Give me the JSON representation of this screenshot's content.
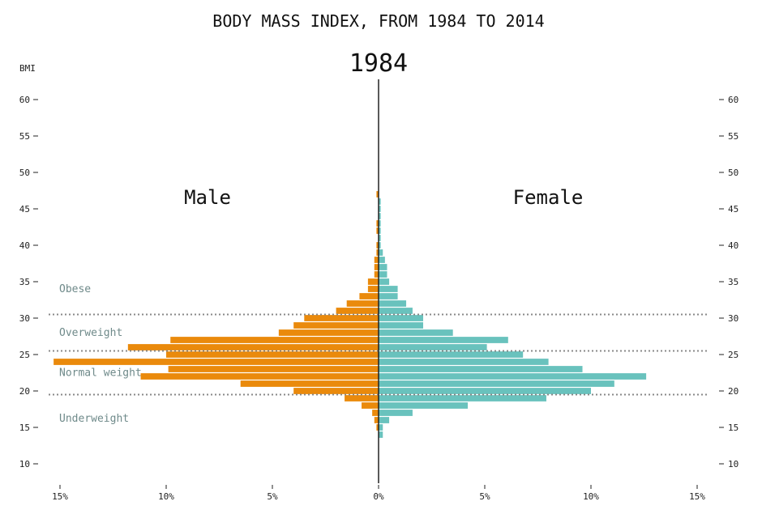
{
  "chart_data": {
    "type": "bar",
    "orientation": "horizontal",
    "title": "BODY MASS INDEX, FROM 1984 TO 2014",
    "year": "1984",
    "ylabel": "BMI",
    "ylim": [
      8,
      63
    ],
    "yticks": [
      10,
      15,
      20,
      25,
      30,
      35,
      40,
      45,
      50,
      55,
      60
    ],
    "xlim": [
      -15,
      15
    ],
    "xticks": [
      -15,
      -10,
      -5,
      0,
      5,
      10,
      15
    ],
    "xtick_labels": [
      "15%",
      "10%",
      "5%",
      "0%",
      "5%",
      "10%",
      "15%"
    ],
    "categories": [
      14,
      15,
      16,
      17,
      18,
      19,
      20,
      21,
      22,
      23,
      24,
      25,
      26,
      27,
      28,
      29,
      30,
      31,
      32,
      33,
      34,
      35,
      36,
      37,
      38,
      39,
      40,
      41,
      42,
      43,
      44,
      45,
      46,
      47
    ],
    "series": [
      {
        "name": "Male",
        "color": "#ea8a0c",
        "values": [
          0,
          0.1,
          0.2,
          0.3,
          0.8,
          1.6,
          4.0,
          6.5,
          11.2,
          9.9,
          15.3,
          10.0,
          11.8,
          9.8,
          4.7,
          4.0,
          3.5,
          2.0,
          1.5,
          0.9,
          0.5,
          0.5,
          0.2,
          0.2,
          0.2,
          0.1,
          0.1,
          0,
          0.1,
          0.1,
          0,
          0,
          0,
          0.1
        ]
      },
      {
        "name": "Female",
        "color": "#69c2bd",
        "values": [
          0.2,
          0.2,
          0.5,
          1.6,
          4.2,
          7.9,
          10.0,
          11.1,
          12.6,
          9.6,
          8.0,
          6.8,
          5.1,
          6.1,
          3.5,
          2.1,
          2.1,
          1.6,
          1.3,
          0.9,
          0.9,
          0.5,
          0.4,
          0.4,
          0.3,
          0.2,
          0.1,
          0.1,
          0.1,
          0.1,
          0.1,
          0.1,
          0.1,
          0
        ]
      }
    ],
    "thresholds": [
      19.5,
      25.5,
      30.5
    ],
    "bmi_categories": [
      {
        "label": "Obese",
        "bmi": 34
      },
      {
        "label": "Overweight",
        "bmi": 28
      },
      {
        "label": "Normal weight",
        "bmi": 22.5
      },
      {
        "label": "Underweight",
        "bmi": 16.2
      }
    ],
    "legend": {
      "male": "Male",
      "female": "Female",
      "placement": "top"
    },
    "grid": false
  }
}
